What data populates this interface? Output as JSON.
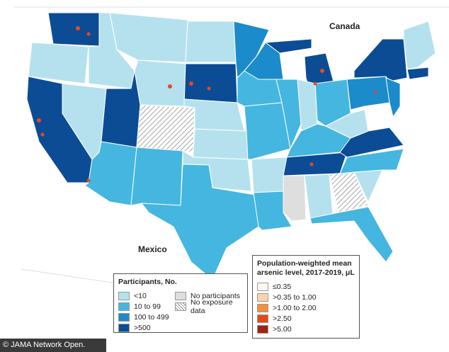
{
  "map": {
    "labels": {
      "canada": "Canada",
      "mexico": "Mexico"
    },
    "participants_legend": {
      "title": "Participants, No.",
      "items": [
        {
          "label": "<10",
          "color": "#b5e1ef"
        },
        {
          "label": "10 to 99",
          "color": "#44b6e0"
        },
        {
          "label": "100 to 499",
          "color": "#1b8bcb"
        },
        {
          "label": ">500",
          "color": "#0c4c95"
        },
        {
          "label": "No participants",
          "color": "#dedede"
        },
        {
          "label": "No exposure data",
          "color": "#ffffff",
          "pattern": "hatch"
        }
      ]
    },
    "arsenic_legend": {
      "title": "Population-weighted mean arsenic level, 2017-2019, μL",
      "items": [
        {
          "label": "≤0.35",
          "color": "#fdf7ee"
        },
        {
          "label": ">0.35 to 1.00",
          "color": "#fbd3ad"
        },
        {
          "label": ">1.00 to 2.00",
          "color": "#f48f3e"
        },
        {
          "label": ">2.50",
          "color": "#e5461c"
        },
        {
          "label": ">5.00",
          "color": "#a2220e"
        }
      ]
    },
    "source": "© JAMA Network Open."
  }
}
